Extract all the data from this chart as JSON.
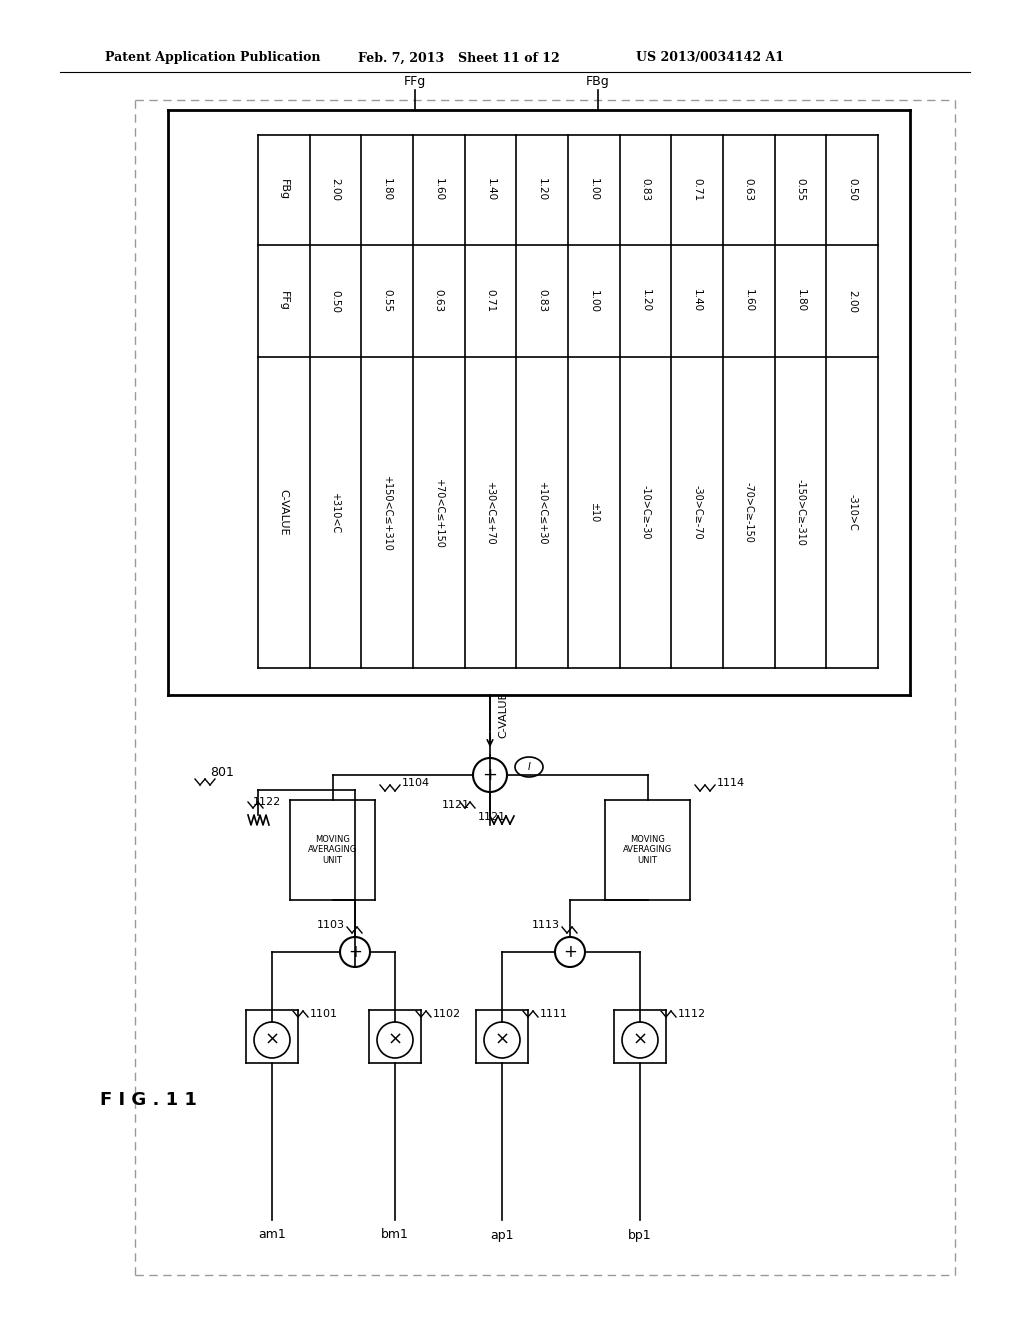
{
  "title_left": "Patent Application Publication",
  "title_mid": "Feb. 7, 2013",
  "title_sheet": "Sheet 11 of 12",
  "title_right": "US 2013/0034142 A1",
  "bg_color": "#ffffff",
  "table_col_headers": [
    "C-VALUE",
    "FFg",
    "FBg"
  ],
  "table_rows": [
    [
      "+310<C",
      "0.50",
      "2.00"
    ],
    [
      "+150<C≤+310",
      "0.55",
      "1.80"
    ],
    [
      "+70<C≤+150",
      "0.63",
      "1.60"
    ],
    [
      "+30<C≤+70",
      "0.71",
      "1.40"
    ],
    [
      "+10<C≤+30",
      "0.83",
      "1.20"
    ],
    [
      "±10",
      "1.00",
      "1.00"
    ],
    [
      "-10>C≥-30",
      "1.20",
      "0.83"
    ],
    [
      "-30>C≥-70",
      "1.40",
      "0.71"
    ],
    [
      "-70>C≥-150",
      "1.60",
      "0.63"
    ],
    [
      "-150>C≥-310",
      "1.80",
      "0.55"
    ],
    [
      "-310>C",
      "2.00",
      "0.50"
    ]
  ],
  "line_color": "#000000",
  "dash_color": "#999999"
}
